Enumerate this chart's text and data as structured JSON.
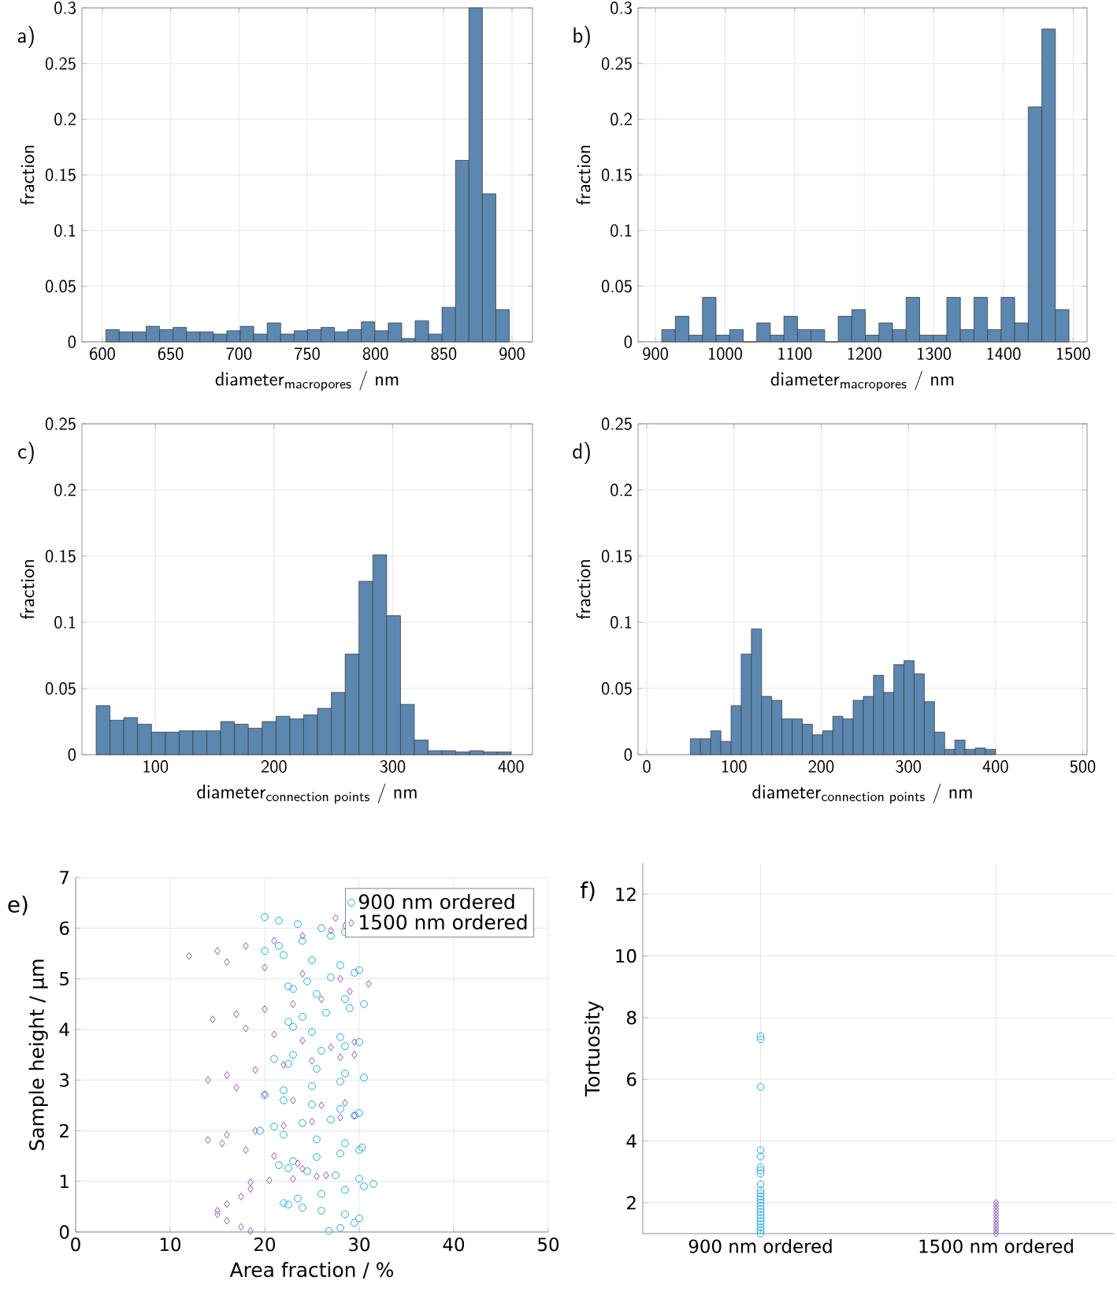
{
  "chart_data": [
    {
      "type": "histogram",
      "title": "a)",
      "xlabel": "\\text{diameter}_{\\text{macropores}}\\text{ / nm}",
      "ylabel": "fraction",
      "color": "#5b87b0",
      "grid": true,
      "bins": [
        602.5,
        612.35,
        622.2,
        632.05,
        641.9,
        651.75,
        661.6,
        671.45,
        681.3,
        691.15,
        701,
        710.85,
        720.7,
        730.55,
        740.4,
        750.25,
        760.1,
        769.95,
        779.8,
        789.65,
        799.5,
        809.35,
        819.2,
        829.05,
        838.9,
        848.75,
        858.6,
        868.45,
        878.3,
        888.15,
        898
      ],
      "values": [
        0.011,
        0.009,
        0.009,
        0.014,
        0.011,
        0.013,
        0.009,
        0.009,
        0.007,
        0.01,
        0.014,
        0.007,
        0.017,
        0.007,
        0.01,
        0.011,
        0.013,
        0.009,
        0.011,
        0.018,
        0.01,
        0.017,
        0.003,
        0.019,
        0.007,
        0.031,
        0.163,
        0.3,
        0.133,
        0.029
      ],
      "xlim": [
        585,
        915
      ],
      "ylim": [
        0,
        0.3
      ],
      "xticks": [
        600,
        650,
        700,
        750,
        800,
        850,
        900
      ],
      "yticks": [
        0,
        0.05,
        0.1,
        0.15,
        0.2,
        0.25,
        0.3
      ]
    },
    {
      "type": "histogram",
      "title": "b)",
      "xlabel": "\\text{diameter}_{\\text{macropores}}\\text{ / nm}",
      "ylabel": "fraction",
      "color": "#5b87b0",
      "grid": true,
      "bins": [
        909,
        928.5,
        948,
        967.5,
        987,
        1006.5,
        1026,
        1045.5,
        1065,
        1084.5,
        1104,
        1123.5,
        1143,
        1162.5,
        1182,
        1201.5,
        1221,
        1240.5,
        1260,
        1279.5,
        1299,
        1318.5,
        1338,
        1357.5,
        1377,
        1396.5,
        1416,
        1435.5,
        1455,
        1474.5,
        1494
      ],
      "values": [
        0.011,
        0.023,
        0.006,
        0.04,
        0.006,
        0.011,
        0,
        0.017,
        0.006,
        0.023,
        0.011,
        0.011,
        0,
        0.023,
        0.029,
        0.006,
        0.017,
        0.011,
        0.04,
        0.006,
        0.006,
        0.04,
        0.011,
        0.04,
        0.011,
        0.04,
        0.017,
        0.211,
        0.281,
        0.029
      ],
      "xlim": [
        875,
        1520
      ],
      "ylim": [
        0,
        0.3
      ],
      "xticks": [
        900,
        1000,
        1100,
        1200,
        1300,
        1400,
        1500
      ],
      "yticks": [
        0,
        0.05,
        0.1,
        0.15,
        0.2,
        0.25,
        0.3
      ]
    },
    {
      "type": "histogram",
      "title": "c)",
      "xlabel": "\\text{diameter}_{\\text{connection points}}\\text{ / nm}",
      "ylabel": "fraction",
      "color": "#5b87b0",
      "grid": true,
      "bins": [
        50,
        61.67,
        73.33,
        85,
        96.67,
        108.33,
        120,
        131.67,
        143.33,
        155,
        166.67,
        178.33,
        190,
        201.67,
        213.33,
        225,
        236.67,
        248.33,
        260,
        271.67,
        283.33,
        295,
        306.67,
        318.33,
        330,
        341.67,
        353.33,
        365,
        376.67,
        388.33,
        400
      ],
      "values": [
        0.037,
        0.026,
        0.028,
        0.023,
        0.017,
        0.017,
        0.018,
        0.018,
        0.018,
        0.025,
        0.023,
        0.02,
        0.025,
        0.029,
        0.027,
        0.03,
        0.035,
        0.047,
        0.076,
        0.131,
        0.151,
        0.105,
        0.038,
        0.011,
        0.003,
        0.003,
        0.002,
        0.003,
        0.002,
        0.002
      ],
      "xlim": [
        38,
        418
      ],
      "ylim": [
        0,
        0.25
      ],
      "xticks": [
        100,
        200,
        300,
        400
      ],
      "yticks": [
        0,
        0.05,
        0.1,
        0.15,
        0.2,
        0.25
      ]
    },
    {
      "type": "histogram",
      "title": "d)",
      "xlabel": "\\text{diameter}_{\\text{connection points}}\\text{ / nm}",
      "ylabel": "fraction",
      "color": "#5b87b0",
      "grid": true,
      "bins": [
        50,
        61.67,
        73.33,
        85,
        96.67,
        108.33,
        120,
        131.67,
        143.33,
        155,
        166.67,
        178.33,
        190,
        201.67,
        213.33,
        225,
        236.67,
        248.33,
        260,
        271.67,
        283.33,
        295,
        306.67,
        318.33,
        330,
        341.67,
        353.33,
        365,
        376.67,
        388.33,
        400
      ],
      "values": [
        0.012,
        0.012,
        0.018,
        0.01,
        0.037,
        0.076,
        0.095,
        0.044,
        0.041,
        0.027,
        0.027,
        0.023,
        0.015,
        0.018,
        0.029,
        0.027,
        0.041,
        0.044,
        0.06,
        0.047,
        0.068,
        0.071,
        0.061,
        0.04,
        0.017,
        0.004,
        0.011,
        0.004,
        0.005,
        0.004
      ],
      "xlim": [
        -10,
        505
      ],
      "ylim": [
        0,
        0.25
      ],
      "xticks": [
        0,
        100,
        200,
        300,
        400,
        500
      ],
      "yticks": [
        0,
        0.05,
        0.1,
        0.15,
        0.2,
        0.25
      ]
    },
    {
      "type": "scatter",
      "title": "e)",
      "xlabel": "\\text{Area fraction / \\%}",
      "ylabel": "Sample height / µm",
      "grid": true,
      "legend": "top right",
      "xlim": [
        0,
        50
      ],
      "ylim": [
        0,
        7
      ],
      "xticks": [
        0,
        10,
        20,
        30,
        40,
        50
      ],
      "yticks": [
        0,
        1,
        2,
        3,
        4,
        5,
        6,
        7
      ],
      "series": [
        {
          "name": "900 nm ordered",
          "color": "#21a9e1",
          "marker": "circle",
          "x": [
            26.8,
            28,
            29.5,
            30,
            28.5,
            26,
            24,
            22.5,
            22,
            23.5,
            26,
            28.5,
            30.5,
            31.5,
            30,
            27.5,
            24.5,
            22.5,
            21.5,
            23,
            25.5,
            28,
            30,
            30.3,
            28.5,
            25.5,
            22,
            19.5,
            21,
            24,
            27,
            29.5,
            30,
            28,
            25,
            22,
            20,
            22,
            25,
            28,
            30.5,
            28.5,
            25.5,
            22.5,
            21,
            23,
            26,
            28.5,
            30,
            28,
            25,
            23,
            22.5,
            24,
            26.5,
            29,
            30.5,
            28.5,
            25.5,
            23,
            22.5,
            24.5,
            27,
            29.5,
            30,
            28,
            25,
            22,
            20,
            21.5,
            24,
            27,
            28.5,
            26,
            23.5,
            21.5,
            20
          ],
          "values": [
            0.02,
            0.08,
            0.18,
            0.27,
            0.35,
            0.42,
            0.48,
            0.54,
            0.57,
            0.66,
            0.75,
            0.83,
            0.9,
            0.95,
            1.05,
            1.12,
            1.2,
            1.26,
            1.32,
            1.4,
            1.48,
            1.55,
            1.62,
            1.67,
            1.75,
            1.83,
            1.92,
            2.0,
            2.08,
            2.15,
            2.22,
            2.3,
            2.35,
            2.43,
            2.52,
            2.6,
            2.7,
            2.8,
            2.88,
            2.97,
            3.05,
            3.13,
            3.22,
            3.32,
            3.42,
            3.5,
            3.58,
            3.67,
            3.75,
            3.85,
            3.95,
            4.05,
            4.15,
            4.25,
            4.33,
            4.42,
            4.5,
            4.6,
            4.7,
            4.8,
            4.85,
            4.95,
            5.03,
            5.12,
            5.17,
            5.27,
            5.37,
            5.47,
            5.55,
            5.65,
            5.75,
            5.85,
            5.92,
            6.0,
            6.08,
            6.15,
            6.22
          ]
        },
        {
          "name": "1500 nm ordered",
          "color": "#9055b5",
          "marker": "diamond",
          "x": [
            18.5,
            17.5,
            16,
            15,
            15,
            16,
            17.5,
            18.5,
            18.5,
            20.5,
            23,
            25.5,
            26.5,
            24,
            23.5,
            21,
            18,
            15.5,
            14,
            16,
            19,
            22,
            25,
            28,
            29.5,
            28.5,
            26,
            23,
            20,
            17,
            14,
            16,
            19,
            22,
            25,
            28,
            29.5,
            29.5,
            27,
            24,
            21,
            18,
            14.5,
            17,
            20,
            23,
            26,
            29,
            31,
            28,
            24,
            20,
            16,
            12,
            15,
            18,
            21,
            24,
            27,
            28.5,
            27.5
          ],
          "values": [
            0.02,
            0.1,
            0.22,
            0.35,
            0.42,
            0.55,
            0.7,
            0.85,
            0.98,
            1.02,
            1.05,
            1.1,
            1.12,
            1.25,
            1.35,
            1.5,
            1.62,
            1.75,
            1.82,
            1.92,
            2.0,
            2.1,
            2.18,
            2.26,
            2.3,
            2.55,
            2.5,
            2.6,
            2.72,
            2.85,
            3.0,
            3.1,
            3.2,
            3.3,
            3.38,
            3.45,
            3.5,
            3.75,
            3.65,
            3.78,
            3.9,
            4.02,
            4.2,
            4.3,
            4.4,
            4.5,
            4.6,
            4.75,
            4.9,
            5.0,
            5.1,
            5.22,
            5.33,
            5.45,
            5.55,
            5.65,
            5.75,
            5.85,
            5.95,
            6.05,
            6.2
          ]
        }
      ]
    },
    {
      "type": "scatter",
      "title": "f)",
      "ylabel": "Tortuosity",
      "grid": true,
      "categories": [
        "900 nm ordered",
        "1500 nm ordered"
      ],
      "ylim": [
        1,
        13
      ],
      "yticks": [
        2,
        4,
        6,
        8,
        10,
        12
      ],
      "series": [
        {
          "color": "#21a9e1",
          "marker": "circle",
          "x": [
            "900 nm ordered",
            "900 nm ordered",
            "900 nm ordered",
            "900 nm ordered",
            "900 nm ordered",
            "900 nm ordered",
            "900 nm ordered",
            "900 nm ordered",
            "900 nm ordered",
            "900 nm ordered",
            "900 nm ordered",
            "900 nm ordered",
            "900 nm ordered",
            "900 nm ordered",
            "900 nm ordered",
            "900 nm ordered",
            "900 nm ordered",
            "900 nm ordered",
            "900 nm ordered",
            "900 nm ordered",
            "900 nm ordered",
            "900 nm ordered",
            "900 nm ordered",
            "900 nm ordered"
          ],
          "values": [
            7.4,
            7.3,
            5.75,
            3.7,
            3.5,
            3.15,
            3.05,
            2.95,
            2.6,
            2.4,
            2.3,
            2.2,
            2.1,
            2.0,
            1.9,
            1.8,
            1.7,
            1.6,
            1.5,
            1.4,
            1.3,
            1.2,
            1.1,
            1.0
          ]
        },
        {
          "color": "#9055b5",
          "marker": "diamond",
          "x": [
            "1500 nm ordered",
            "1500 nm ordered",
            "1500 nm ordered",
            "1500 nm ordered",
            "1500 nm ordered",
            "1500 nm ordered",
            "1500 nm ordered",
            "1500 nm ordered",
            "1500 nm ordered",
            "1500 nm ordered",
            "1500 nm ordered"
          ],
          "values": [
            2.0,
            1.9,
            1.8,
            1.7,
            1.6,
            1.5,
            1.4,
            1.3,
            1.2,
            1.1,
            1.0
          ]
        }
      ]
    }
  ]
}
